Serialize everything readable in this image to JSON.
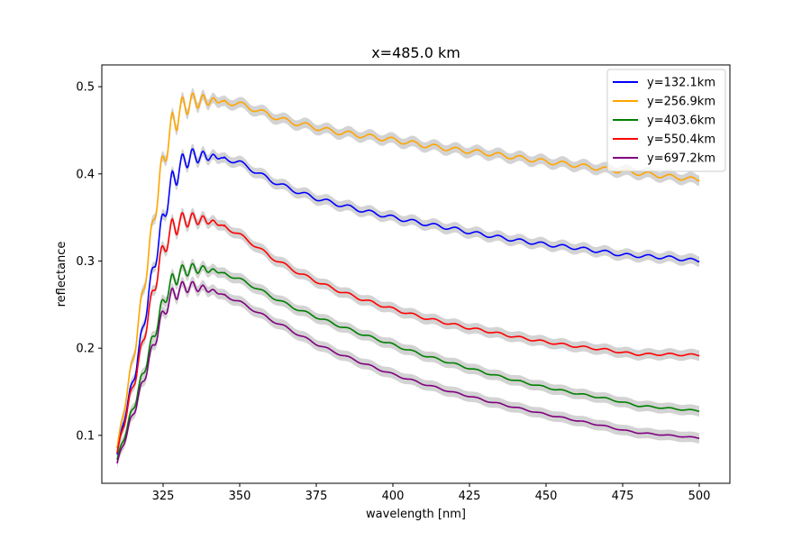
{
  "chart_data": {
    "type": "line",
    "title": "x=485.0 km",
    "xlabel": "wavelength [nm]",
    "ylabel": "reflectance",
    "xlim": [
      305,
      510
    ],
    "ylim": [
      0.045,
      0.525
    ],
    "xticks": [
      325,
      350,
      375,
      400,
      425,
      450,
      475,
      500
    ],
    "yticks": [
      0.1,
      0.2,
      0.3,
      0.4,
      0.5
    ],
    "grid": false,
    "legend_position": "upper right",
    "uncertainty_band_color": "#d3d3d3",
    "series": [
      {
        "name": "y=132.1km",
        "color": "#0000ff",
        "points": [
          [
            310,
            0.078
          ],
          [
            312,
            0.115
          ],
          [
            314,
            0.145
          ],
          [
            316,
            0.175
          ],
          [
            318,
            0.215
          ],
          [
            320,
            0.255
          ],
          [
            322,
            0.295
          ],
          [
            324,
            0.33
          ],
          [
            326,
            0.365
          ],
          [
            328,
            0.39
          ],
          [
            330,
            0.405
          ],
          [
            332,
            0.415
          ],
          [
            334,
            0.42
          ],
          [
            336,
            0.42
          ],
          [
            340,
            0.42
          ],
          [
            345,
            0.418
          ],
          [
            350,
            0.413
          ],
          [
            355,
            0.403
          ],
          [
            360,
            0.393
          ],
          [
            365,
            0.385
          ],
          [
            370,
            0.378
          ],
          [
            375,
            0.372
          ],
          [
            380,
            0.367
          ],
          [
            390,
            0.358
          ],
          [
            400,
            0.35
          ],
          [
            410,
            0.343
          ],
          [
            420,
            0.337
          ],
          [
            425,
            0.333
          ],
          [
            430,
            0.33
          ],
          [
            440,
            0.324
          ],
          [
            450,
            0.319
          ],
          [
            460,
            0.315
          ],
          [
            470,
            0.31
          ],
          [
            475,
            0.307
          ],
          [
            480,
            0.306
          ],
          [
            490,
            0.304
          ],
          [
            500,
            0.3
          ]
        ]
      },
      {
        "name": "y=256.9km",
        "color": "#ffa500",
        "points": [
          [
            310,
            0.085
          ],
          [
            312,
            0.125
          ],
          [
            314,
            0.165
          ],
          [
            316,
            0.205
          ],
          [
            318,
            0.255
          ],
          [
            320,
            0.3
          ],
          [
            322,
            0.35
          ],
          [
            324,
            0.395
          ],
          [
            326,
            0.43
          ],
          [
            328,
            0.455
          ],
          [
            330,
            0.47
          ],
          [
            332,
            0.478
          ],
          [
            334,
            0.482
          ],
          [
            336,
            0.484
          ],
          [
            340,
            0.484
          ],
          [
            345,
            0.483
          ],
          [
            350,
            0.48
          ],
          [
            355,
            0.474
          ],
          [
            360,
            0.467
          ],
          [
            365,
            0.461
          ],
          [
            370,
            0.457
          ],
          [
            375,
            0.453
          ],
          [
            380,
            0.449
          ],
          [
            390,
            0.444
          ],
          [
            400,
            0.439
          ],
          [
            410,
            0.433
          ],
          [
            420,
            0.428
          ],
          [
            425,
            0.426
          ],
          [
            430,
            0.424
          ],
          [
            440,
            0.419
          ],
          [
            450,
            0.414
          ],
          [
            460,
            0.41
          ],
          [
            470,
            0.405
          ],
          [
            475,
            0.403
          ],
          [
            480,
            0.401
          ],
          [
            490,
            0.397
          ],
          [
            500,
            0.393
          ]
        ]
      },
      {
        "name": "y=403.6km",
        "color": "#008000",
        "points": [
          [
            310,
            0.072
          ],
          [
            312,
            0.095
          ],
          [
            314,
            0.118
          ],
          [
            316,
            0.14
          ],
          [
            318,
            0.165
          ],
          [
            320,
            0.19
          ],
          [
            322,
            0.215
          ],
          [
            324,
            0.24
          ],
          [
            326,
            0.262
          ],
          [
            328,
            0.276
          ],
          [
            330,
            0.285
          ],
          [
            332,
            0.289
          ],
          [
            334,
            0.291
          ],
          [
            336,
            0.291
          ],
          [
            340,
            0.29
          ],
          [
            345,
            0.286
          ],
          [
            350,
            0.279
          ],
          [
            355,
            0.27
          ],
          [
            360,
            0.26
          ],
          [
            365,
            0.251
          ],
          [
            370,
            0.243
          ],
          [
            375,
            0.236
          ],
          [
            380,
            0.229
          ],
          [
            390,
            0.216
          ],
          [
            400,
            0.204
          ],
          [
            410,
            0.192
          ],
          [
            420,
            0.182
          ],
          [
            425,
            0.177
          ],
          [
            430,
            0.172
          ],
          [
            440,
            0.163
          ],
          [
            450,
            0.155
          ],
          [
            460,
            0.148
          ],
          [
            470,
            0.142
          ],
          [
            475,
            0.138
          ],
          [
            480,
            0.134
          ],
          [
            490,
            0.131
          ],
          [
            500,
            0.128
          ]
        ]
      },
      {
        "name": "y=550.4km",
        "color": "#ff0000",
        "points": [
          [
            310,
            0.08
          ],
          [
            312,
            0.11
          ],
          [
            314,
            0.14
          ],
          [
            316,
            0.168
          ],
          [
            318,
            0.2
          ],
          [
            320,
            0.235
          ],
          [
            322,
            0.268
          ],
          [
            324,
            0.3
          ],
          [
            326,
            0.322
          ],
          [
            328,
            0.337
          ],
          [
            330,
            0.344
          ],
          [
            332,
            0.347
          ],
          [
            334,
            0.348
          ],
          [
            336,
            0.348
          ],
          [
            340,
            0.346
          ],
          [
            345,
            0.34
          ],
          [
            350,
            0.33
          ],
          [
            355,
            0.318
          ],
          [
            360,
            0.305
          ],
          [
            365,
            0.295
          ],
          [
            370,
            0.285
          ],
          [
            375,
            0.277
          ],
          [
            380,
            0.269
          ],
          [
            390,
            0.256
          ],
          [
            400,
            0.245
          ],
          [
            410,
            0.235
          ],
          [
            420,
            0.227
          ],
          [
            425,
            0.223
          ],
          [
            430,
            0.22
          ],
          [
            440,
            0.213
          ],
          [
            450,
            0.207
          ],
          [
            460,
            0.202
          ],
          [
            470,
            0.198
          ],
          [
            475,
            0.195
          ],
          [
            480,
            0.193
          ],
          [
            490,
            0.193
          ],
          [
            500,
            0.192
          ]
        ]
      },
      {
        "name": "y=697.2km",
        "color": "#800080",
        "points": [
          [
            310,
            0.068
          ],
          [
            312,
            0.09
          ],
          [
            314,
            0.112
          ],
          [
            316,
            0.133
          ],
          [
            318,
            0.156
          ],
          [
            320,
            0.18
          ],
          [
            322,
            0.205
          ],
          [
            324,
            0.228
          ],
          [
            326,
            0.248
          ],
          [
            328,
            0.26
          ],
          [
            330,
            0.267
          ],
          [
            332,
            0.27
          ],
          [
            334,
            0.271
          ],
          [
            336,
            0.27
          ],
          [
            340,
            0.267
          ],
          [
            345,
            0.261
          ],
          [
            350,
            0.253
          ],
          [
            355,
            0.243
          ],
          [
            360,
            0.233
          ],
          [
            365,
            0.224
          ],
          [
            370,
            0.214
          ],
          [
            375,
            0.205
          ],
          [
            380,
            0.197
          ],
          [
            390,
            0.183
          ],
          [
            400,
            0.17
          ],
          [
            410,
            0.159
          ],
          [
            420,
            0.149
          ],
          [
            425,
            0.145
          ],
          [
            430,
            0.14
          ],
          [
            440,
            0.132
          ],
          [
            450,
            0.124
          ],
          [
            460,
            0.117
          ],
          [
            470,
            0.11
          ],
          [
            475,
            0.106
          ],
          [
            480,
            0.103
          ],
          [
            490,
            0.1
          ],
          [
            500,
            0.097
          ]
        ]
      }
    ]
  }
}
